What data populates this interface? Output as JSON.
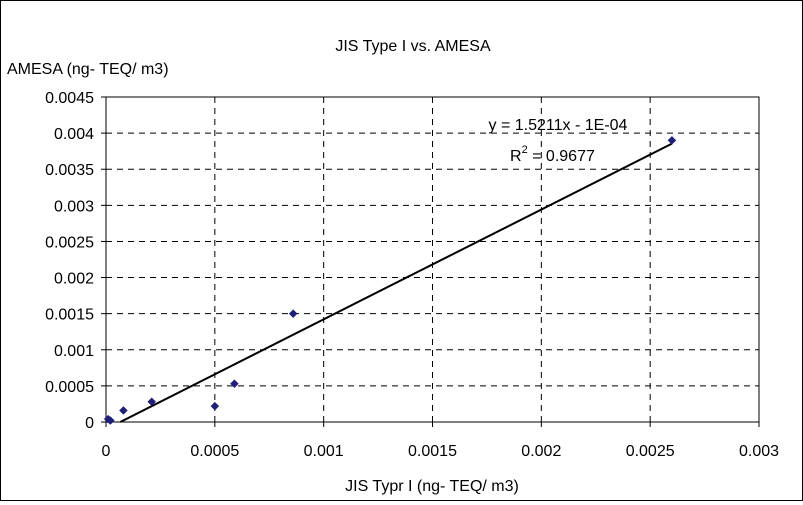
{
  "chart_data": {
    "type": "scatter",
    "title": "JIS Type I vs. AMESA",
    "ylabel": "AMESA (ng- TEQ/ m3)",
    "xlabel": "JIS Typr I (ng- TEQ/ m3)",
    "xlim": [
      0,
      0.003
    ],
    "ylim": [
      0,
      0.0045
    ],
    "x_ticks": [
      0,
      0.0005,
      0.001,
      0.0015,
      0.002,
      0.0025,
      0.003
    ],
    "x_tick_labels": [
      "0",
      "0.0005",
      "0.001",
      "0.0015",
      "0.002",
      "0.0025",
      "0.003"
    ],
    "y_ticks": [
      0,
      0.0005,
      0.001,
      0.0015,
      0.002,
      0.0025,
      0.003,
      0.0035,
      0.004,
      0.0045
    ],
    "y_tick_labels": [
      "0",
      "0.0005",
      "0.001",
      "0.0015",
      "0.002",
      "0.0025",
      "0.003",
      "0.0035",
      "0.004",
      "0.0045"
    ],
    "grid": true,
    "grid_style": "dashed",
    "series": [
      {
        "color": "#1f1f7a",
        "marker": "diamond",
        "points": [
          {
            "x": 1e-05,
            "y": 4e-05
          },
          {
            "x": 2e-05,
            "y": 2e-05
          },
          {
            "x": 8e-05,
            "y": 0.00016
          },
          {
            "x": 0.00021,
            "y": 0.00028
          },
          {
            "x": 0.0005,
            "y": 0.00022
          },
          {
            "x": 0.00059,
            "y": 0.00053
          },
          {
            "x": 0.00086,
            "y": 0.0015
          },
          {
            "x": 0.0026,
            "y": 0.0039
          }
        ]
      }
    ],
    "trendline": {
      "type": "linear",
      "slope": 1.5211,
      "intercept": -0.0001,
      "x_range": [
        6.57e-05,
        0.0026
      ],
      "equation_label": "y = 1.5211x - 1E-04",
      "r2_prefix": "R",
      "r2_sup": "2",
      "r2_value": " = 0.9677",
      "color": "#000000"
    }
  }
}
